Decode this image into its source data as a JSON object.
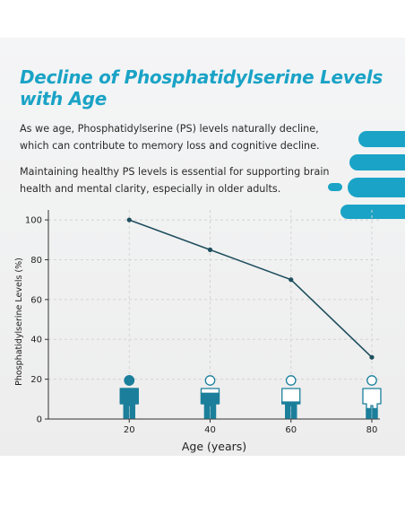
{
  "header": {
    "title": "Decline of Phosphatidylserine Levels with Age",
    "paragraph1": "As we age, Phosphatidylserine (PS) levels naturally decline, which can contribute to memory loss and cognitive decline.",
    "paragraph2": "Maintaining healthy PS levels is essential for supporting brain health and mental clarity, especially in older adults."
  },
  "colors": {
    "accent": "#1aa3c6",
    "line": "#1f4f5e",
    "figure_dark": "#1b7f9b"
  },
  "chart_data": {
    "type": "line",
    "x": [
      20,
      40,
      60,
      80
    ],
    "values": [
      100,
      85,
      70,
      31
    ],
    "x_ticks": [
      "20",
      "40",
      "60",
      "80"
    ],
    "y_ticks": [
      "0",
      "20",
      "40",
      "60",
      "80",
      "100"
    ],
    "xlabel": "Age (years)",
    "ylabel": "Phosphatidylserine Levels (%)",
    "xlim": [
      0,
      82
    ],
    "ylim": [
      0,
      105
    ],
    "grid": true,
    "figure_icons": [
      "person-icon",
      "person-icon",
      "person-icon",
      "person-icon"
    ],
    "figure_fill_levels": [
      1.0,
      0.6,
      0.4,
      0.25
    ]
  }
}
